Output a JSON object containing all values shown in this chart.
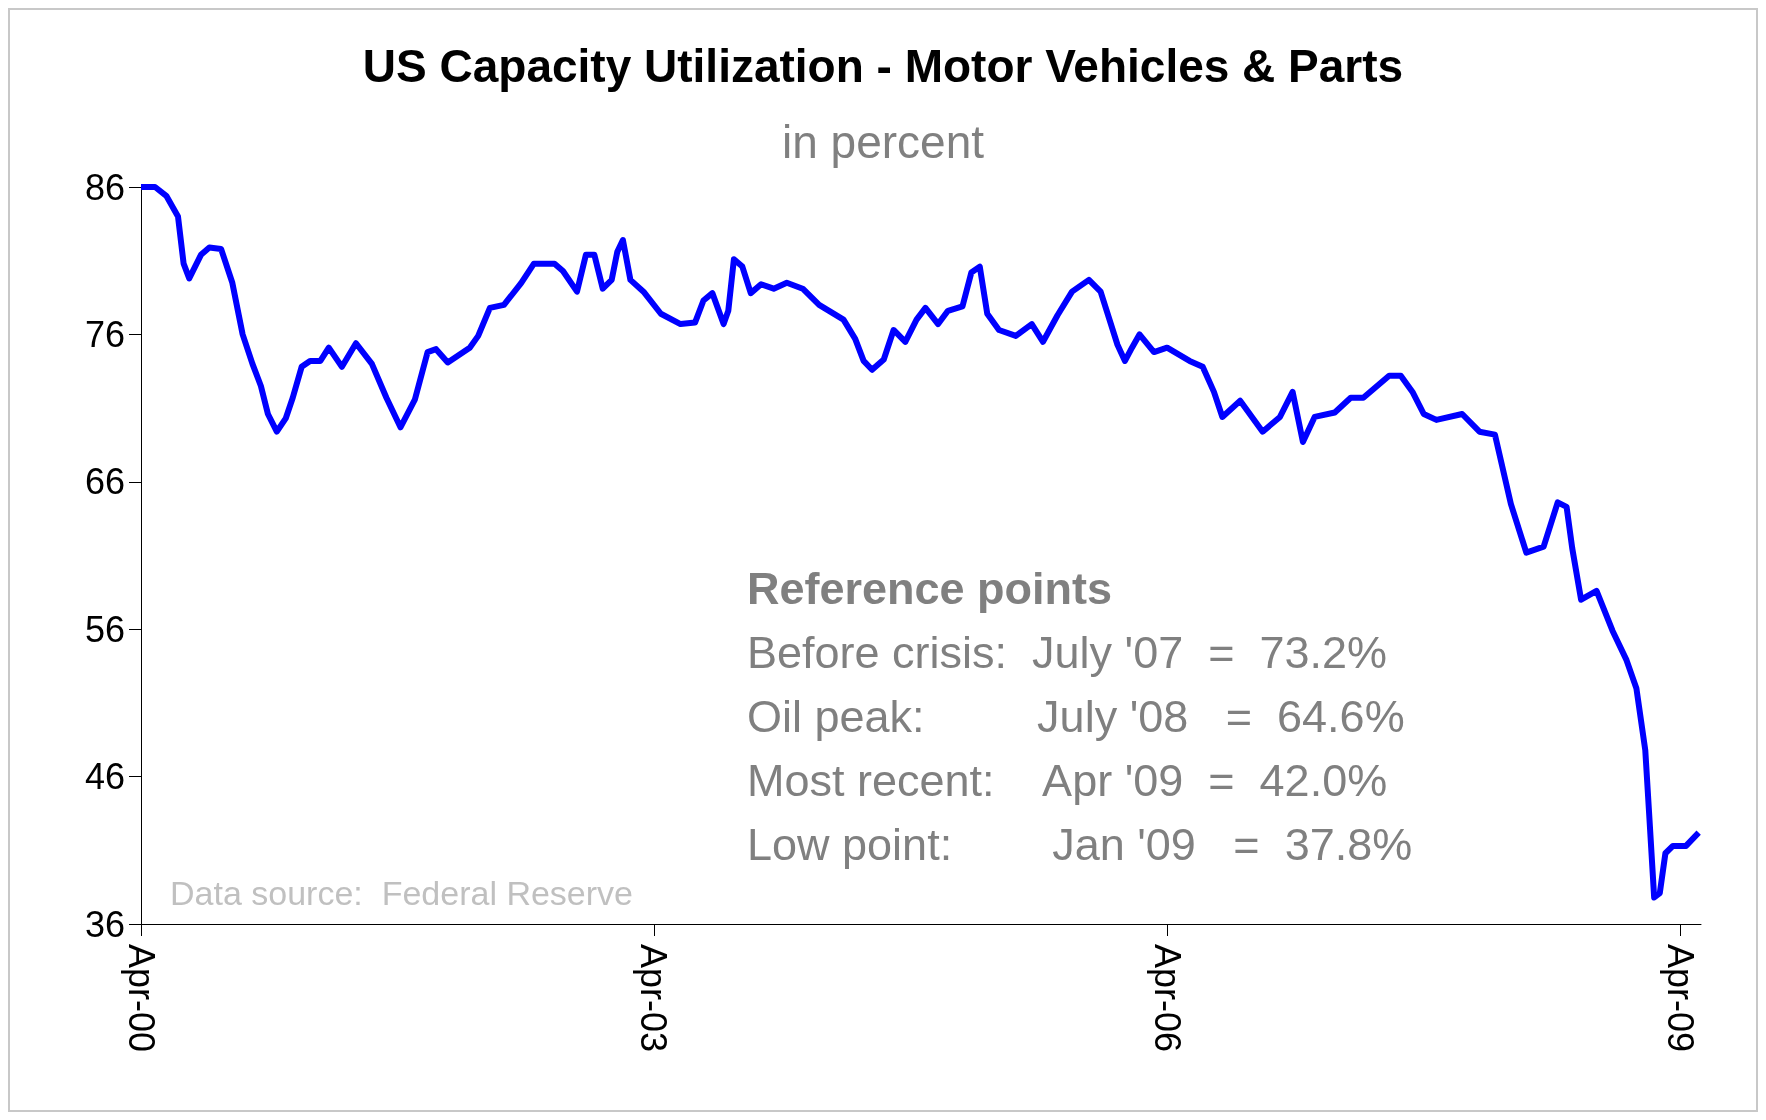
{
  "chart_data": {
    "type": "line",
    "title": "US Capacity Utilization - Motor Vehicles & Parts",
    "subtitle": "in percent",
    "x": [
      "2000-04-01",
      "2000-05-01",
      "2000-05-25",
      "2000-06-19",
      "2000-07-01",
      "2000-07-13",
      "2000-08-07",
      "2000-08-25",
      "2000-09-19",
      "2000-10-13",
      "2000-11-04",
      "2000-11-25",
      "2000-12-13",
      "2000-12-28",
      "2001-01-16",
      "2001-02-04",
      "2001-02-19",
      "2001-03-10",
      "2001-03-28",
      "2001-04-19",
      "2001-05-07",
      "2001-06-04",
      "2001-07-04",
      "2001-08-07",
      "2001-09-07",
      "2001-10-07",
      "2001-11-07",
      "2001-12-04",
      "2001-12-22",
      "2002-01-16",
      "2002-03-04",
      "2002-03-22",
      "2002-04-16",
      "2002-05-16",
      "2002-06-22",
      "2002-07-19",
      "2002-09-01",
      "2002-09-19",
      "2002-10-19",
      "2002-11-07",
      "2002-11-25",
      "2002-12-13",
      "2003-01-01",
      "2003-01-13",
      "2003-01-25",
      "2003-02-10",
      "2003-03-10",
      "2003-04-16",
      "2003-05-28",
      "2003-06-28",
      "2003-07-16",
      "2003-08-04",
      "2003-08-28",
      "2003-09-07",
      "2003-09-19",
      "2003-10-07",
      "2003-10-25",
      "2003-11-16",
      "2003-12-13",
      "2004-01-10",
      "2004-02-13",
      "2004-03-19",
      "2004-05-10",
      "2004-06-04",
      "2004-06-22",
      "2004-07-10",
      "2004-08-04",
      "2004-08-25",
      "2004-09-19",
      "2004-10-13",
      "2004-11-01",
      "2004-11-28",
      "2004-12-19",
      "2005-01-19",
      "2005-02-07",
      "2005-02-25",
      "2005-03-13",
      "2005-04-07",
      "2005-05-13",
      "2005-06-16",
      "2005-07-10",
      "2005-08-10",
      "2005-09-10",
      "2005-10-16",
      "2005-11-10",
      "2005-12-16",
      "2006-01-01",
      "2006-01-16",
      "2006-02-01",
      "2006-03-04",
      "2006-04-01",
      "2006-05-19",
      "2006-06-16",
      "2006-07-10",
      "2006-07-28",
      "2006-09-04",
      "2006-10-22",
      "2006-11-28",
      "2006-12-25",
      "2007-01-16",
      "2007-02-10",
      "2007-03-25",
      "2007-04-28",
      "2007-05-25",
      "2007-07-19",
      "2007-08-13",
      "2007-09-07",
      "2007-10-01",
      "2007-10-28",
      "2007-12-22",
      "2008-01-28",
      "2008-03-01",
      "2008-04-04",
      "2008-05-07",
      "2008-06-13",
      "2008-07-13",
      "2008-08-01",
      "2008-08-13",
      "2008-09-01",
      "2008-10-04",
      "2008-11-07",
      "2008-12-07",
      "2008-12-28",
      "2009-01-16",
      "2009-01-25",
      "2009-02-04",
      "2009-02-16",
      "2009-02-28",
      "2009-03-16",
      "2009-04-13",
      "2009-05-10"
    ],
    "series": [
      {
        "color": "#0000ff",
        "values": [
          86,
          86,
          85.4,
          84,
          80.8,
          79.8,
          81.4,
          81.9,
          81.8,
          79.5,
          76,
          74,
          72.5,
          70.6,
          69.4,
          70.3,
          71.7,
          73.8,
          74.2,
          74.2,
          75.1,
          73.8,
          75.4,
          74,
          71.7,
          69.7,
          71.6,
          74.8,
          75,
          74.1,
          75.1,
          75.9,
          77.8,
          78,
          79.5,
          80.8,
          80.8,
          80.3,
          78.9,
          81.4,
          81.4,
          79.1,
          79.7,
          81.6,
          82.4,
          79.7,
          78.9,
          77.4,
          76.7,
          76.8,
          78.3,
          78.8,
          76.7,
          77.6,
          81.1,
          80.6,
          78.8,
          79.4,
          79.1,
          79.5,
          79.1,
          78,
          77,
          75.7,
          74.2,
          73.6,
          74.3,
          76.3,
          75.5,
          77,
          77.8,
          76.7,
          77.6,
          77.9,
          80.2,
          80.6,
          77.4,
          76.3,
          75.9,
          76.7,
          75.5,
          77.3,
          78.9,
          79.7,
          78.9,
          75.3,
          74.2,
          75.1,
          76,
          74.8,
          75.1,
          74.2,
          73.8,
          72.1,
          70.4,
          71.5,
          69.4,
          70.4,
          72.1,
          68.7,
          70.4,
          70.7,
          71.7,
          71.7,
          73.2,
          73.2,
          72.1,
          70.6,
          70.2,
          70.6,
          69.4,
          69.2,
          64.5,
          61.2,
          61.6,
          64.6,
          64.3,
          61.5,
          58,
          58.6,
          55.9,
          53.9,
          52,
          47.8,
          43.1,
          37.8,
          38.1,
          40.8,
          41.3,
          41.3,
          42.2
        ]
      }
    ],
    "xlim": [
      "2000-04-01",
      "2009-05-15"
    ],
    "xticks": [
      {
        "value": "2000-04-01",
        "label": "Apr-00"
      },
      {
        "value": "2003-04-01",
        "label": "Apr-03"
      },
      {
        "value": "2006-04-01",
        "label": "Apr-06"
      },
      {
        "value": "2009-04-01",
        "label": "Apr-09"
      }
    ],
    "ylim": [
      36,
      86
    ],
    "yticks": [
      36,
      46,
      56,
      66,
      76,
      86
    ],
    "grid": false,
    "marker": "none",
    "annotations": [
      "Reference points",
      "Before crisis:  July '07  =  73.2%",
      "Oil peak:         July '08   =  64.6%",
      "Most recent:    Apr '09  =  42.0%",
      "Low point:        Jan '09   =  37.8%",
      "Data source:  Federal Reserve"
    ]
  }
}
